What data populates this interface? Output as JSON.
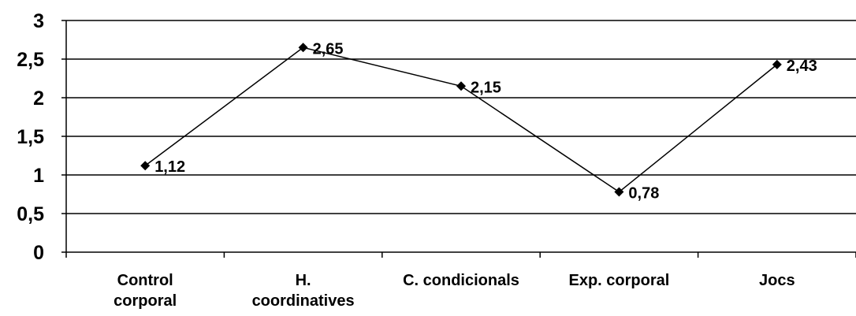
{
  "chart_data": {
    "type": "line",
    "categories": [
      [
        "Control",
        "corporal"
      ],
      [
        "H.",
        "coordinatives"
      ],
      [
        "C. condicionals"
      ],
      [
        "Exp. corporal"
      ],
      [
        "Jocs"
      ]
    ],
    "values": [
      1.12,
      2.65,
      2.15,
      0.78,
      2.43
    ],
    "data_labels": [
      "1,12",
      "2,65",
      "2,15",
      "0,78",
      "2,43"
    ],
    "ylim": [
      0,
      3
    ],
    "yticks": [
      0,
      0.5,
      1,
      1.5,
      2,
      2.5,
      3
    ],
    "ytick_labels": [
      "0",
      "0,5",
      "1",
      "1,5",
      "2",
      "2,5",
      "3"
    ],
    "grid": true,
    "marker": "diamond",
    "line_color": "#000000",
    "title": "",
    "xlabel": "",
    "ylabel": ""
  }
}
